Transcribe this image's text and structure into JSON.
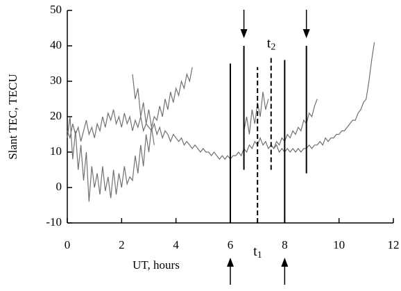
{
  "chart_data": {
    "type": "line",
    "xlabel": "UT, hours",
    "ylabel": "Slant TEC, TECU",
    "xlim": [
      0,
      12
    ],
    "ylim": [
      -10,
      50
    ],
    "xticks": [
      0,
      2,
      4,
      6,
      8,
      10,
      12
    ],
    "yticks": [
      -10,
      0,
      10,
      20,
      30,
      40,
      50
    ],
    "color": "#707070",
    "series": [
      {
        "x": [
          0,
          0.1,
          0.2,
          0.3,
          0.4,
          0.5,
          0.6,
          0.7,
          0.8,
          0.9,
          1,
          1.1,
          1.2,
          1.3,
          1.4,
          1.5,
          1.6,
          1.7,
          1.8,
          1.9,
          2,
          2.1,
          2.2,
          2.3,
          2.4,
          2.5,
          2.6,
          2.7,
          2.8,
          2.9,
          3,
          3.1,
          3.2,
          3.3,
          3.4,
          3.5,
          3.6,
          3.7,
          3.8,
          3.9,
          4,
          4.1,
          4.2,
          4.3,
          4.4,
          4.5,
          4.6,
          4.7,
          4.8,
          4.9,
          5,
          5.1,
          5.2,
          5.3,
          5.4,
          5.5,
          5.6,
          5.7,
          5.8,
          5.9,
          6,
          6.1,
          6.2,
          6.3,
          6.4,
          6.5,
          6.6,
          6.7,
          6.8,
          6.9,
          7,
          7.1,
          7.2,
          7.3,
          7.4,
          7.5,
          7.6,
          7.7,
          7.8,
          7.9,
          8,
          8.1,
          8.2,
          8.3,
          8.4,
          8.5,
          8.6,
          8.7,
          8.8,
          8.9,
          9,
          9.1,
          9.2,
          9.3,
          9.4,
          9.5,
          9.6,
          9.7,
          9.8,
          9.9,
          10,
          10.1,
          10.2,
          10.3,
          10.4,
          10.5,
          10.6,
          10.7,
          10.8,
          10.9,
          11,
          11.1,
          11.2,
          11.3
        ],
        "values": [
          16,
          14,
          18,
          15,
          17,
          13,
          16,
          19,
          15,
          17,
          14,
          18,
          16,
          20,
          17,
          21,
          19,
          22,
          18,
          20,
          17,
          21,
          18,
          20,
          16,
          19,
          17,
          20,
          16,
          18,
          17,
          16,
          18,
          15,
          17,
          14,
          16,
          15,
          13,
          15,
          14,
          13,
          14,
          12,
          13,
          12,
          11,
          12,
          11,
          10,
          11,
          10,
          10,
          9,
          10,
          9,
          8,
          9,
          8,
          9,
          8,
          9,
          9,
          10,
          9,
          11,
          10,
          12,
          11,
          13,
          12,
          14,
          12,
          13,
          11,
          12,
          11,
          12,
          10,
          11,
          10,
          11,
          10,
          11,
          10,
          11,
          10,
          11,
          11,
          12,
          11,
          12,
          12,
          13,
          12,
          14,
          13,
          14,
          14,
          15,
          15,
          16,
          16,
          17,
          18,
          19,
          19,
          21,
          22,
          24,
          25,
          30,
          36,
          41
        ]
      },
      {
        "x": [
          0,
          0.1,
          0.2,
          0.3,
          0.4,
          0.5,
          0.6,
          0.7,
          0.8,
          0.9,
          1,
          1.1,
          1.2,
          1.3,
          1.4,
          1.5,
          1.6,
          1.7,
          1.8,
          1.9,
          2,
          2.1,
          2.2,
          2.3,
          2.4,
          2.5,
          2.6,
          2.7,
          2.8,
          2.9,
          3,
          3.1,
          3.2
        ],
        "values": [
          14,
          20,
          8,
          16,
          5,
          12,
          2,
          10,
          -4,
          6,
          0,
          4,
          -2,
          6,
          -1,
          3,
          -3,
          5,
          -2,
          4,
          0,
          6,
          1,
          3,
          2,
          9,
          4,
          12,
          6,
          15,
          10,
          17,
          12
        ]
      },
      {
        "x": [
          2.4,
          2.5,
          2.6,
          2.7,
          2.8,
          2.9,
          3,
          3.1,
          3.2,
          3.3,
          3.4,
          3.5,
          3.6,
          3.7,
          3.8,
          3.9,
          4,
          4.1,
          4.2,
          4.3,
          4.4,
          4.5,
          4.6
        ],
        "values": [
          32,
          25,
          28,
          20,
          24,
          18,
          22,
          17,
          20,
          19,
          23,
          20,
          25,
          22,
          27,
          24,
          28,
          26,
          30,
          28,
          32,
          30,
          34
        ]
      },
      {
        "x": [
          6.5,
          6.6,
          6.7,
          6.8,
          6.9,
          7,
          7.1,
          7.2,
          7.3,
          7.4
        ],
        "values": [
          16,
          20,
          15,
          22,
          18,
          24,
          20,
          27,
          22,
          25
        ]
      },
      {
        "x": [
          7.5,
          7.6,
          7.7,
          7.8,
          7.9,
          8,
          8.1,
          8.2,
          8.3,
          8.4,
          8.5,
          8.6,
          8.7,
          8.8,
          8.9,
          9,
          9.1,
          9.2
        ],
        "values": [
          12,
          11,
          13,
          12,
          14,
          13,
          15,
          14,
          16,
          15,
          17,
          16,
          19,
          18,
          21,
          20,
          23,
          25
        ]
      }
    ],
    "markers": [
      {
        "x": 6,
        "y0": -10,
        "y1": 35,
        "dashed": false,
        "arrow": "up"
      },
      {
        "x": 6.5,
        "y0": 5,
        "y1": 40,
        "dashed": false,
        "arrow": "down"
      },
      {
        "x": 7,
        "y0": -10,
        "y1": 34,
        "dashed": true,
        "label": "t",
        "sub": "1"
      },
      {
        "x": 7.5,
        "y0": 5,
        "y1": 37,
        "dashed": true,
        "label": "t",
        "sub": "2"
      },
      {
        "x": 8,
        "y0": -10,
        "y1": 36,
        "dashed": false,
        "arrow": "up"
      },
      {
        "x": 8.8,
        "y0": 4,
        "y1": 40,
        "dashed": false,
        "arrow": "down"
      }
    ]
  }
}
